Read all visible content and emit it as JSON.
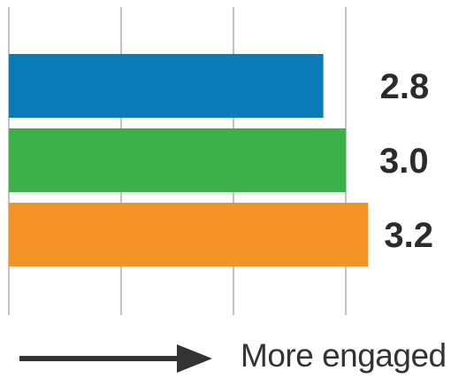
{
  "chart_data": {
    "type": "bar",
    "orientation": "horizontal",
    "categories": [
      "",
      "",
      ""
    ],
    "values": [
      2.8,
      3.0,
      3.2
    ],
    "value_labels": [
      "2.8",
      "3.0",
      "3.2"
    ],
    "colors": [
      "#0a7ab8",
      "#3db04a",
      "#f39325"
    ],
    "xlim": [
      0,
      4
    ],
    "grid": true,
    "title": "",
    "xlabel": "",
    "ylabel": ""
  },
  "footer": {
    "direction_label": "More engaged"
  }
}
